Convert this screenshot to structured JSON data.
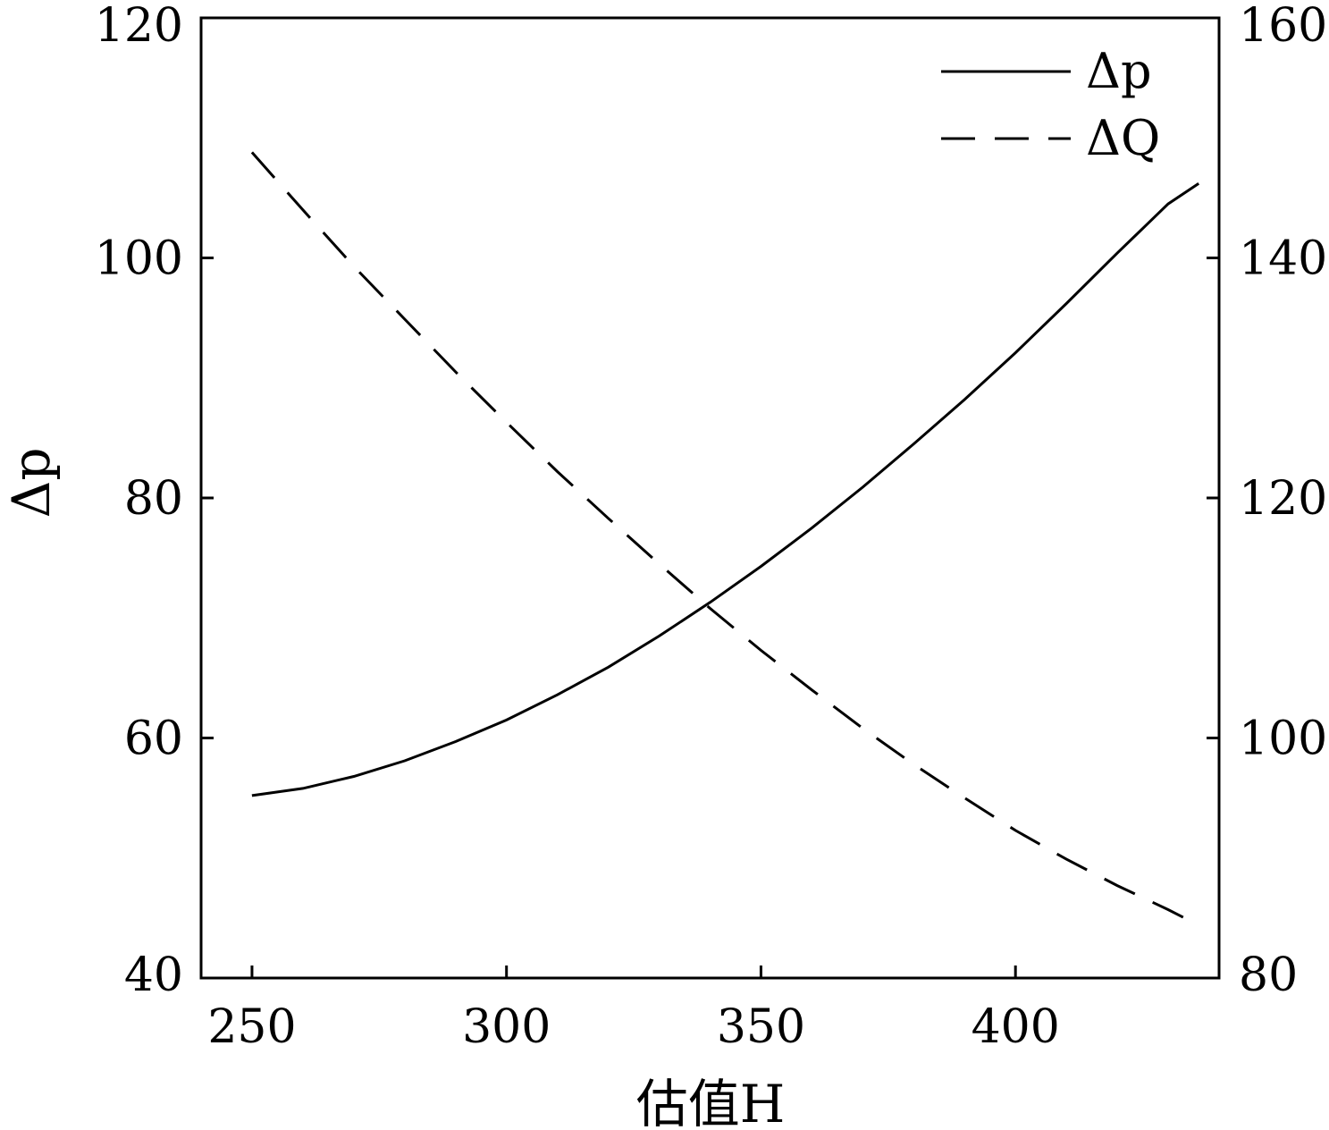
{
  "chart_data": {
    "type": "line",
    "xlabel": "估值H",
    "ylabel": "Δp",
    "y2label": "",
    "xlim": [
      240,
      440
    ],
    "ylim": [
      40,
      120
    ],
    "y2lim": [
      80,
      160
    ],
    "xticks": [
      250,
      300,
      350,
      400
    ],
    "yticks": [
      40,
      60,
      80,
      100,
      120
    ],
    "y2ticks": [
      80,
      100,
      120,
      140,
      160
    ],
    "legend_position": "top-right",
    "grid": false,
    "series": [
      {
        "name": "Δp",
        "axis": "left",
        "style": "solid",
        "color": "#000000",
        "x": [
          250,
          260,
          270,
          280,
          290,
          300,
          310,
          320,
          330,
          340,
          350,
          360,
          370,
          380,
          390,
          400,
          410,
          420,
          430,
          436
        ],
        "y": [
          55.2,
          55.8,
          56.8,
          58.1,
          59.7,
          61.5,
          63.6,
          65.9,
          68.5,
          71.3,
          74.3,
          77.5,
          80.9,
          84.5,
          88.2,
          92.1,
          96.2,
          100.4,
          104.5,
          106.2
        ]
      },
      {
        "name": "ΔQ",
        "axis": "right",
        "style": "dashed",
        "color": "#000000",
        "x": [
          250,
          260,
          270,
          280,
          290,
          300,
          310,
          320,
          330,
          340,
          350,
          360,
          370,
          380,
          390,
          400,
          410,
          420,
          430,
          436
        ],
        "y": [
          148.8,
          144.0,
          139.3,
          134.9,
          130.5,
          126.3,
          122.2,
          118.3,
          114.5,
          110.8,
          107.3,
          104.0,
          100.8,
          97.8,
          95.0,
          92.3,
          89.9,
          87.7,
          85.7,
          84.4
        ]
      }
    ]
  }
}
